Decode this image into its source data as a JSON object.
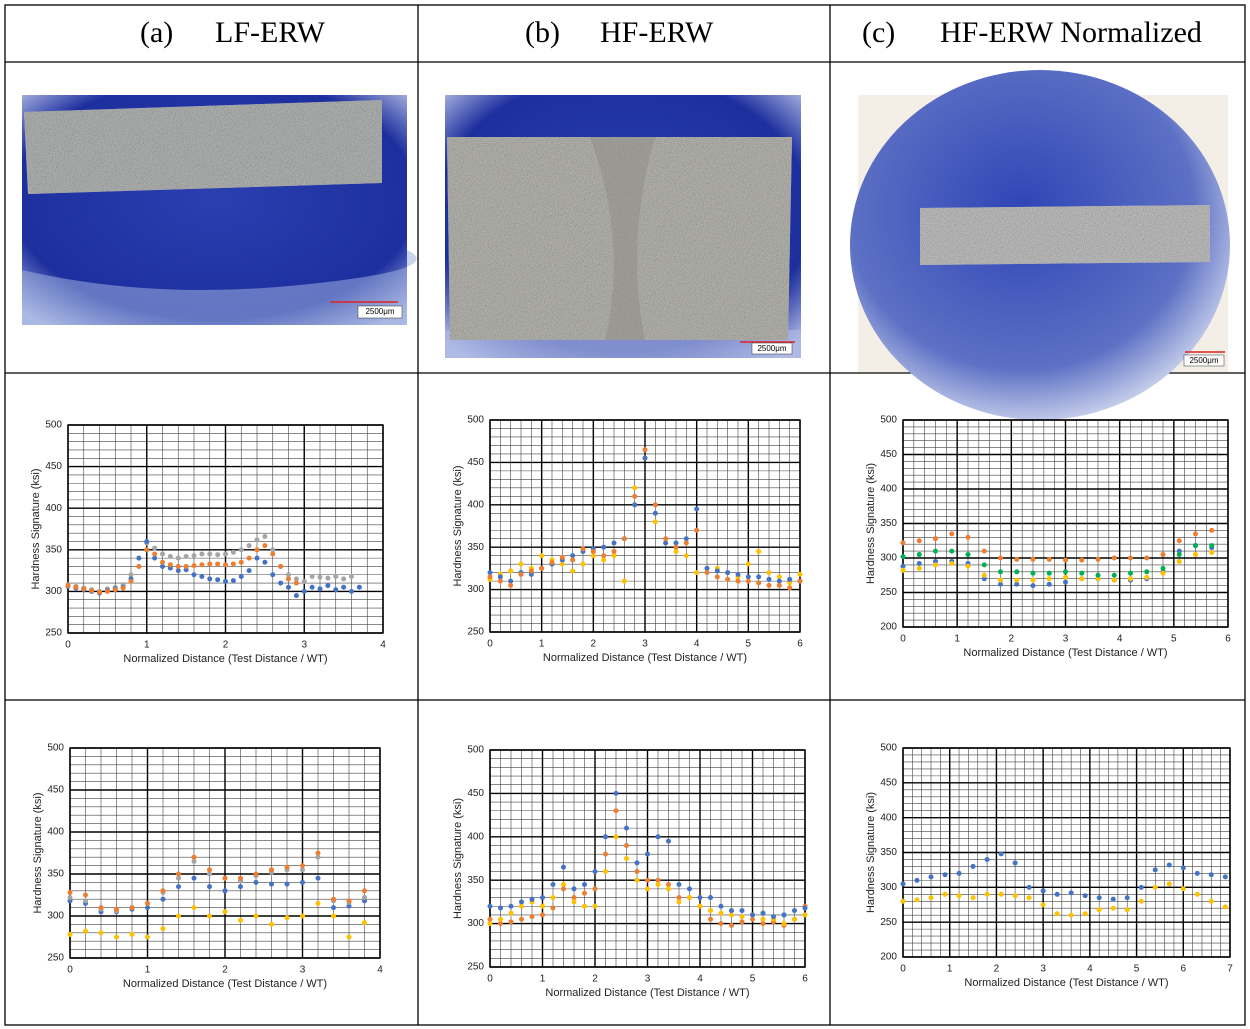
{
  "table": {
    "headers": [
      {
        "label": "(a)",
        "title": "LF-ERW"
      },
      {
        "label": "(b)",
        "title": "HF-ERW"
      },
      {
        "label": "(c)",
        "title": "HF-ERW Normalized"
      }
    ]
  },
  "photos": [
    {
      "scale": "2500μm"
    },
    {
      "scale": "2500μm"
    },
    {
      "scale": "2500μm"
    }
  ],
  "chart_data": [
    {
      "type": "scatter",
      "xlabel": "Normalized  Distance (Test Distance / WT)",
      "ylabel": "Hardness Signature (ksi)",
      "xlim": [
        0,
        4
      ],
      "ylim": [
        250,
        500
      ],
      "xticks": [
        0,
        1,
        2,
        3,
        4
      ],
      "yticks": [
        250,
        300,
        350,
        400,
        450,
        500
      ],
      "grid": true,
      "minor_divisions": 5,
      "x": [
        0,
        0.1,
        0.2,
        0.3,
        0.4,
        0.5,
        0.6,
        0.7,
        0.8,
        0.9,
        1,
        1.1,
        1.2,
        1.3,
        1.4,
        1.5,
        1.6,
        1.7,
        1.8,
        1.9,
        2,
        2.1,
        2.2,
        2.3,
        2.4,
        2.5,
        2.6,
        2.7,
        2.8,
        2.9,
        3,
        3.1,
        3.2,
        3.3,
        3.4,
        3.5,
        3.6,
        3.7
      ],
      "series": [
        {
          "color": "#a5a5a5",
          "values": [
            308,
            306,
            304,
            302,
            300,
            303,
            305,
            308,
            320,
            340,
            358,
            352,
            345,
            342,
            340,
            342,
            343,
            345,
            345,
            344,
            345,
            347,
            350,
            355,
            362,
            366,
            350,
            330,
            320,
            315,
            312,
            318,
            317,
            316,
            318,
            315,
            318,
            null
          ]
        },
        {
          "color": "#4472c4",
          "values": [
            306,
            304,
            302,
            300,
            298,
            301,
            303,
            305,
            315,
            340,
            360,
            340,
            330,
            328,
            325,
            326,
            320,
            318,
            315,
            314,
            312,
            313,
            318,
            325,
            340,
            335,
            320,
            310,
            305,
            295,
            300,
            305,
            303,
            307,
            302,
            305,
            300,
            305
          ]
        },
        {
          "color": "#ed7d31",
          "values": [
            307,
            305,
            303,
            301,
            299,
            300,
            302,
            304,
            312,
            330,
            350,
            345,
            335,
            332,
            330,
            330,
            331,
            332,
            333,
            333,
            332,
            333,
            335,
            340,
            350,
            355,
            345,
            330,
            315,
            310,
            null,
            null,
            null,
            null,
            null,
            null,
            null,
            null
          ]
        }
      ]
    },
    {
      "type": "scatter",
      "xlabel": "Normalized  Distance (Test Distance / WT)",
      "ylabel": "Hardness Signature (ksi)",
      "xlim": [
        0,
        6
      ],
      "ylim": [
        250,
        500
      ],
      "xticks": [
        0,
        1,
        2,
        3,
        4,
        5,
        6
      ],
      "yticks": [
        250,
        300,
        350,
        400,
        450,
        500
      ],
      "grid": true,
      "minor_divisions": 5,
      "x": [
        0,
        0.2,
        0.4,
        0.6,
        0.8,
        1,
        1.2,
        1.4,
        1.6,
        1.8,
        2,
        2.2,
        2.4,
        2.6,
        2.8,
        3,
        3.2,
        3.4,
        3.6,
        3.8,
        4,
        4.2,
        4.4,
        4.6,
        4.8,
        5,
        5.2,
        5.4,
        5.6,
        5.8,
        6
      ],
      "series": [
        {
          "color": "#ffc000",
          "values": [
            312,
            318,
            322,
            330,
            325,
            340,
            335,
            330,
            322,
            330,
            340,
            335,
            340,
            310,
            420,
            455,
            380,
            355,
            345,
            340,
            320,
            325,
            325,
            320,
            315,
            330,
            345,
            320,
            315,
            308,
            318
          ]
        },
        {
          "color": "#4472c4",
          "values": [
            320,
            315,
            310,
            320,
            318,
            325,
            330,
            335,
            340,
            345,
            348,
            350,
            355,
            360,
            400,
            455,
            390,
            355,
            355,
            360,
            395,
            325,
            322,
            320,
            318,
            315,
            315,
            312,
            310,
            312,
            310
          ]
        },
        {
          "color": "#ed7d31",
          "values": [
            315,
            310,
            305,
            318,
            322,
            325,
            332,
            338,
            335,
            348,
            345,
            340,
            345,
            360,
            410,
            465,
            400,
            360,
            350,
            355,
            370,
            320,
            315,
            312,
            310,
            310,
            308,
            305,
            305,
            302,
            310
          ]
        }
      ]
    },
    {
      "type": "scatter",
      "xlabel": "Normalized  Distance (Test Distance / WT)",
      "ylabel": "Hardness Signature (ksi)",
      "xlim": [
        0,
        6
      ],
      "ylim": [
        200,
        500
      ],
      "xticks": [
        0,
        1,
        2,
        3,
        4,
        5,
        6
      ],
      "yticks": [
        200,
        250,
        300,
        350,
        400,
        450,
        500
      ],
      "grid": true,
      "minor_divisions": 5,
      "x": [
        0,
        0.3,
        0.6,
        0.9,
        1.2,
        1.5,
        1.8,
        2.1,
        2.4,
        2.7,
        3,
        3.3,
        3.6,
        3.9,
        4.2,
        4.5,
        4.8,
        5.1,
        5.4,
        5.7
      ],
      "series": [
        {
          "color": "#ed7d31",
          "values": [
            322,
            325,
            328,
            335,
            330,
            310,
            300,
            298,
            298,
            298,
            297,
            297,
            298,
            300,
            300,
            300,
            305,
            325,
            335,
            340
          ]
        },
        {
          "color": "#4472c4",
          "values": [
            288,
            292,
            295,
            295,
            292,
            270,
            262,
            262,
            260,
            262,
            265,
            270,
            270,
            268,
            268,
            270,
            280,
            310,
            318,
            315
          ]
        },
        {
          "color": "#ffc000",
          "values": [
            282,
            285,
            290,
            292,
            288,
            275,
            268,
            268,
            268,
            270,
            272,
            270,
            270,
            268,
            270,
            272,
            278,
            295,
            305,
            308
          ]
        },
        {
          "color": "#00b050",
          "values": [
            302,
            305,
            310,
            310,
            305,
            290,
            280,
            280,
            278,
            278,
            280,
            278,
            275,
            275,
            278,
            280,
            285,
            305,
            318,
            318
          ]
        }
      ]
    },
    {
      "type": "scatter",
      "xlabel": "Normalized  Distance (Test Distance / WT)",
      "ylabel": "Hardness Signature (ksi)",
      "xlim": [
        0,
        4
      ],
      "ylim": [
        250,
        500
      ],
      "xticks": [
        0,
        1,
        2,
        3,
        4
      ],
      "yticks": [
        250,
        300,
        350,
        400,
        450,
        500
      ],
      "grid": true,
      "minor_divisions": 5,
      "x": [
        0,
        0.2,
        0.4,
        0.6,
        0.8,
        1,
        1.2,
        1.4,
        1.6,
        1.8,
        2,
        2.2,
        2.4,
        2.6,
        2.8,
        3,
        3.2,
        3.4,
        3.6,
        3.8
      ],
      "series": [
        {
          "color": "#ffc000",
          "values": [
            278,
            282,
            280,
            275,
            278,
            275,
            285,
            300,
            310,
            300,
            305,
            295,
            300,
            290,
            298,
            300,
            315,
            300,
            275,
            292
          ]
        },
        {
          "color": "#4472c4",
          "values": [
            318,
            315,
            305,
            305,
            308,
            310,
            320,
            335,
            345,
            335,
            330,
            335,
            340,
            338,
            338,
            340,
            345,
            310,
            312,
            318
          ]
        },
        {
          "color": "#a5a5a5",
          "values": [
            322,
            318,
            308,
            306,
            310,
            315,
            328,
            345,
            365,
            350,
            345,
            342,
            348,
            352,
            355,
            355,
            370,
            318,
            316,
            322
          ]
        },
        {
          "color": "#ed7d31",
          "values": [
            328,
            325,
            310,
            308,
            310,
            315,
            330,
            350,
            370,
            355,
            345,
            345,
            350,
            355,
            358,
            360,
            375,
            320,
            318,
            330
          ]
        }
      ]
    },
    {
      "type": "scatter",
      "xlabel": "Normalized  Distance (Test Distance / WT)",
      "ylabel": "Hardness Signature (ksi)",
      "xlim": [
        0,
        6
      ],
      "ylim": [
        250,
        500
      ],
      "xticks": [
        0,
        1,
        2,
        3,
        4,
        5,
        6
      ],
      "yticks": [
        250,
        300,
        350,
        400,
        450,
        500
      ],
      "grid": true,
      "minor_divisions": 5,
      "x": [
        0,
        0.2,
        0.4,
        0.6,
        0.8,
        1,
        1.2,
        1.4,
        1.6,
        1.8,
        2,
        2.2,
        2.4,
        2.6,
        2.8,
        3,
        3.2,
        3.4,
        3.6,
        3.8,
        4,
        4.2,
        4.4,
        4.6,
        4.8,
        5,
        5.2,
        5.4,
        5.6,
        5.8,
        6
      ],
      "series": [
        {
          "color": "#ed7d31",
          "values": [
            305,
            300,
            302,
            305,
            308,
            310,
            318,
            340,
            330,
            335,
            340,
            380,
            430,
            390,
            360,
            350,
            350,
            345,
            330,
            330,
            320,
            305,
            300,
            298,
            302,
            305,
            300,
            302,
            298,
            305,
            320
          ]
        },
        {
          "color": "#ffc000",
          "values": [
            300,
            305,
            312,
            320,
            325,
            320,
            330,
            345,
            325,
            320,
            320,
            360,
            400,
            375,
            350,
            340,
            345,
            340,
            325,
            330,
            320,
            315,
            312,
            310,
            308,
            310,
            305,
            305,
            300,
            305,
            310
          ]
        },
        {
          "color": "#4472c4",
          "values": [
            320,
            318,
            320,
            325,
            328,
            330,
            345,
            365,
            340,
            345,
            360,
            400,
            450,
            410,
            370,
            380,
            400,
            395,
            345,
            340,
            330,
            330,
            320,
            315,
            315,
            310,
            312,
            308,
            310,
            315,
            318
          ]
        }
      ]
    },
    {
      "type": "scatter",
      "xlabel": "Normalized  Distance (Test Distance / WT)",
      "ylabel": "Hardness Signature (ksi)",
      "xlim": [
        0,
        7
      ],
      "ylim": [
        200,
        500
      ],
      "xticks": [
        0,
        1,
        2,
        3,
        4,
        5,
        6,
        7
      ],
      "yticks": [
        200,
        250,
        300,
        350,
        400,
        450,
        500
      ],
      "grid": true,
      "minor_divisions": 5,
      "x": [
        0,
        0.3,
        0.6,
        0.9,
        1.2,
        1.5,
        1.8,
        2.1,
        2.4,
        2.7,
        3,
        3.3,
        3.6,
        3.9,
        4.2,
        4.5,
        4.8,
        5.1,
        5.4,
        5.7,
        6,
        6.3,
        6.6,
        6.9
      ],
      "series": [
        {
          "color": "#ffc000",
          "values": [
            280,
            282,
            285,
            290,
            288,
            285,
            290,
            290,
            288,
            285,
            275,
            262,
            260,
            262,
            268,
            270,
            268,
            280,
            300,
            305,
            298,
            290,
            280,
            272
          ]
        },
        {
          "color": "#4472c4",
          "values": [
            305,
            310,
            315,
            318,
            320,
            330,
            340,
            348,
            335,
            300,
            295,
            290,
            292,
            288,
            285,
            283,
            285,
            300,
            325,
            332,
            328,
            320,
            318,
            315
          ]
        }
      ]
    }
  ]
}
